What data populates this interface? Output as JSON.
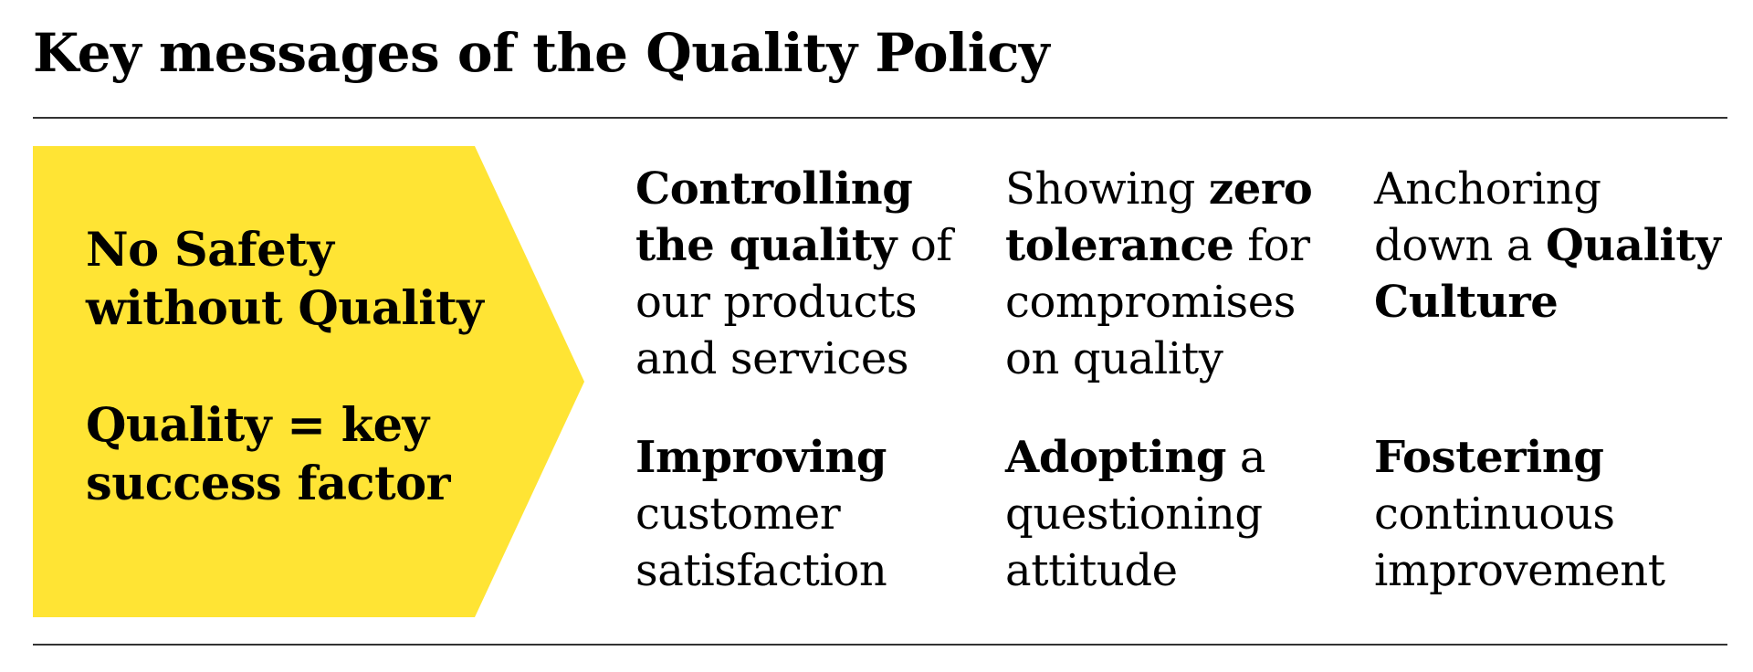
{
  "title": "Key messages of the Quality Policy",
  "colors": {
    "accent": "#FFE434",
    "text": "#000000",
    "rule": "#333333"
  },
  "arrow": {
    "message_1": [
      "No Safety",
      "without Quality"
    ],
    "message_2": [
      "Quality = key",
      "success factor"
    ]
  },
  "messages": [
    {
      "lines": [
        [
          {
            "t": "Controlling",
            "b": true
          }
        ],
        [
          {
            "t": "the quality",
            "b": true
          },
          {
            "t": " of",
            "b": false
          }
        ],
        [
          {
            "t": "our products",
            "b": false
          }
        ],
        [
          {
            "t": "and services",
            "b": false
          }
        ]
      ]
    },
    {
      "lines": [
        [
          {
            "t": "Showing ",
            "b": false
          },
          {
            "t": "zero",
            "b": true
          }
        ],
        [
          {
            "t": "tolerance",
            "b": true
          },
          {
            "t": " for",
            "b": false
          }
        ],
        [
          {
            "t": "compromises",
            "b": false
          }
        ],
        [
          {
            "t": "on quality",
            "b": false
          }
        ]
      ]
    },
    {
      "lines": [
        [
          {
            "t": "Anchoring",
            "b": false
          }
        ],
        [
          {
            "t": "down a ",
            "b": false
          },
          {
            "t": "Quality",
            "b": true
          }
        ],
        [
          {
            "t": "Culture",
            "b": true
          }
        ]
      ]
    },
    {
      "lines": [
        [
          {
            "t": "Improving",
            "b": true
          }
        ],
        [
          {
            "t": "customer",
            "b": false
          }
        ],
        [
          {
            "t": "satisfaction",
            "b": false
          }
        ]
      ]
    },
    {
      "lines": [
        [
          {
            "t": "Adopting",
            "b": true
          },
          {
            "t": " a",
            "b": false
          }
        ],
        [
          {
            "t": "questioning",
            "b": false
          }
        ],
        [
          {
            "t": "attitude",
            "b": false
          }
        ]
      ]
    },
    {
      "lines": [
        [
          {
            "t": "Fostering",
            "b": true
          }
        ],
        [
          {
            "t": "continuous",
            "b": false
          }
        ],
        [
          {
            "t": "improvement",
            "b": false
          }
        ]
      ]
    }
  ]
}
